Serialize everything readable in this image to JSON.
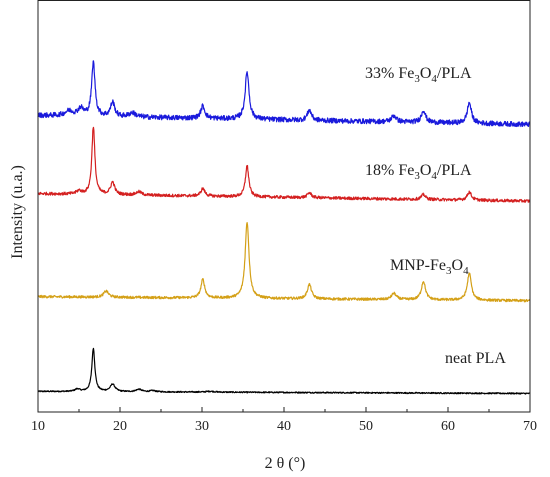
{
  "chart_data": {
    "type": "line",
    "title": "",
    "xlabel": "2 θ (°)",
    "ylabel": "Intensity (u.a.)",
    "xlim": [
      10,
      70
    ],
    "x_ticks": [
      "10",
      "20",
      "30",
      "40",
      "50",
      "60",
      "70"
    ],
    "y_ticks_shown": false,
    "grid": false,
    "legend": "none",
    "series": [
      {
        "name": "neat PLA",
        "label_parts": [
          {
            "t": "neat PLA",
            "sub": false
          }
        ],
        "color": "#000000",
        "baseline": 0.05,
        "noise": 0.0015,
        "slope": -0.005,
        "peaks": [
          [
            14.8,
            0.006,
            0.35
          ],
          [
            16.75,
            0.105,
            0.22
          ],
          [
            19.1,
            0.018,
            0.35
          ],
          [
            22.3,
            0.006,
            0.4
          ],
          [
            24.0,
            0.003,
            0.4
          ],
          [
            31.0,
            0.002,
            0.6
          ]
        ]
      },
      {
        "name": "MNP-Fe3O4",
        "label_parts": [
          {
            "t": "MNP-Fe",
            "sub": false
          },
          {
            "t": "3",
            "sub": true
          },
          {
            "t": "O",
            "sub": false
          },
          {
            "t": "4",
            "sub": true
          }
        ],
        "color": "#d4a017",
        "baseline": 0.28,
        "noise": 0.003,
        "slope": -0.01,
        "peaks": [
          [
            18.3,
            0.015,
            0.35
          ],
          [
            30.1,
            0.045,
            0.28
          ],
          [
            35.5,
            0.185,
            0.28
          ],
          [
            43.1,
            0.035,
            0.3
          ],
          [
            53.4,
            0.015,
            0.35
          ],
          [
            57.0,
            0.045,
            0.3
          ],
          [
            62.6,
            0.065,
            0.3
          ]
        ]
      },
      {
        "name": "18% Fe3O4/PLA",
        "label_parts": [
          {
            "t": "18% Fe",
            "sub": false
          },
          {
            "t": "3",
            "sub": true
          },
          {
            "t": "O",
            "sub": false
          },
          {
            "t": "4",
            "sub": true
          },
          {
            "t": "/PLA",
            "sub": false
          }
        ],
        "color": "#d42020",
        "baseline": 0.53,
        "noise": 0.0035,
        "slope": -0.018,
        "peaks": [
          [
            15.0,
            0.008,
            0.35
          ],
          [
            16.75,
            0.165,
            0.22
          ],
          [
            19.1,
            0.03,
            0.3
          ],
          [
            22.3,
            0.008,
            0.4
          ],
          [
            30.1,
            0.018,
            0.3
          ],
          [
            35.5,
            0.075,
            0.25
          ],
          [
            43.1,
            0.012,
            0.3
          ],
          [
            57.0,
            0.012,
            0.3
          ],
          [
            62.6,
            0.02,
            0.3
          ]
        ]
      },
      {
        "name": "33% Fe3O4/PLA",
        "label_parts": [
          {
            "t": "33% Fe",
            "sub": false
          },
          {
            "t": "3",
            "sub": true
          },
          {
            "t": "O",
            "sub": false
          },
          {
            "t": "4",
            "sub": true
          },
          {
            "t": "/PLA",
            "sub": false
          }
        ],
        "color": "#1a1adc",
        "baseline": 0.72,
        "noise": 0.006,
        "slope": -0.022,
        "peaks": [
          [
            13.8,
            0.012,
            0.6
          ],
          [
            15.2,
            0.018,
            0.4
          ],
          [
            16.75,
            0.13,
            0.25
          ],
          [
            19.1,
            0.035,
            0.3
          ],
          [
            21.5,
            0.01,
            0.5
          ],
          [
            30.1,
            0.03,
            0.3
          ],
          [
            35.5,
            0.115,
            0.28
          ],
          [
            43.1,
            0.025,
            0.3
          ],
          [
            53.4,
            0.015,
            0.35
          ],
          [
            57.0,
            0.03,
            0.3
          ],
          [
            62.6,
            0.05,
            0.3
          ]
        ]
      }
    ]
  }
}
